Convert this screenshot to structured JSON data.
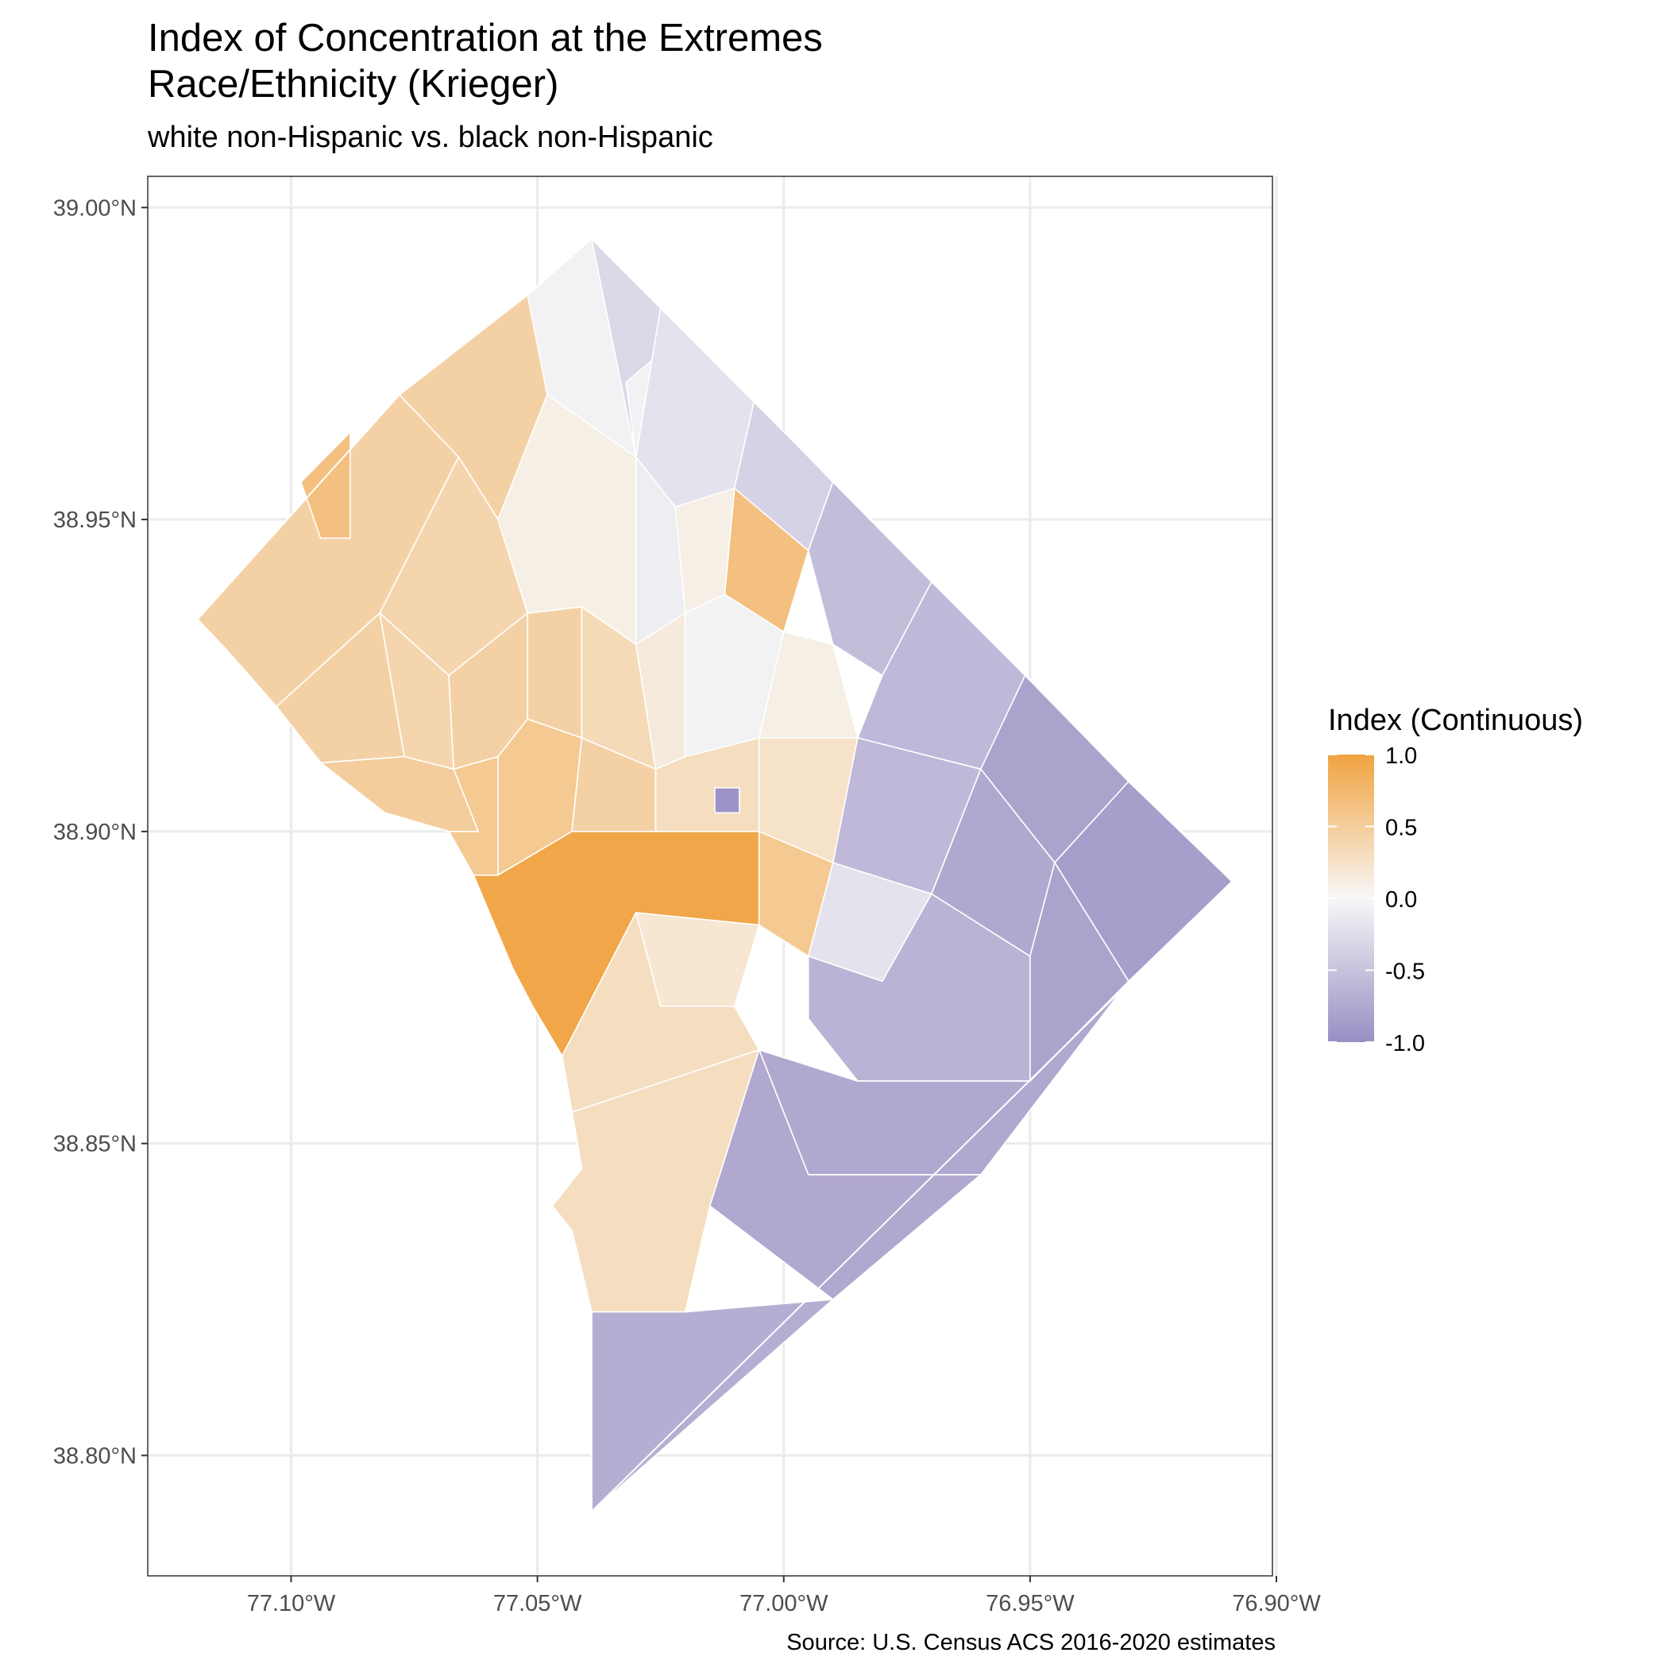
{
  "title_line1": "Index of Concentration at the Extremes",
  "title_line2": "Race/Ethnicity (Krieger)",
  "subtitle": "white non-Hispanic vs. black non-Hispanic",
  "caption": "Source: U.S. Census ACS 2016-2020 estimates",
  "legend": {
    "title": "Index (Continuous)",
    "ticks": [
      {
        "value": 1.0,
        "label": "1.0"
      },
      {
        "value": 0.5,
        "label": "0.5"
      },
      {
        "value": 0.0,
        "label": "0.0"
      },
      {
        "value": -0.5,
        "label": "-0.5"
      },
      {
        "value": -1.0,
        "label": "-1.0"
      }
    ],
    "colors": {
      "high": "#F1A340",
      "mid": "#F7F7F7",
      "low": "#998EC3"
    }
  },
  "axes": {
    "x_ticks": [
      {
        "value": -77.1,
        "label": "77.10°W"
      },
      {
        "value": -77.05,
        "label": "77.05°W"
      },
      {
        "value": -77.0,
        "label": "77.00°W"
      },
      {
        "value": -76.95,
        "label": "76.95°W"
      },
      {
        "value": -76.9,
        "label": "76.90°W"
      }
    ],
    "y_ticks": [
      {
        "value": 39.0,
        "label": "39.00°N"
      },
      {
        "value": 38.95,
        "label": "38.95°N"
      },
      {
        "value": 38.9,
        "label": "38.90°N"
      },
      {
        "value": 38.85,
        "label": "38.85°N"
      },
      {
        "value": 38.8,
        "label": "38.80°N"
      }
    ]
  },
  "map": {
    "outline": [
      [
        -77.039,
        38.995
      ],
      [
        -76.909,
        38.892
      ],
      [
        -77.039,
        38.791
      ],
      [
        -77.039,
        38.823
      ],
      [
        -77.043,
        38.836
      ],
      [
        -77.047,
        38.84
      ],
      [
        -77.041,
        38.846
      ],
      [
        -77.043,
        38.855
      ],
      [
        -77.045,
        38.864
      ],
      [
        -77.051,
        38.872
      ],
      [
        -77.055,
        38.878
      ],
      [
        -77.063,
        38.893
      ],
      [
        -77.068,
        38.9
      ],
      [
        -77.081,
        38.903
      ],
      [
        -77.094,
        38.911
      ],
      [
        -77.103,
        38.92
      ],
      [
        -77.113,
        38.929
      ],
      [
        -77.119,
        38.934
      ],
      [
        -77.078,
        38.97
      ],
      [
        -77.052,
        38.986
      ],
      [
        -77.039,
        38.995
      ]
    ],
    "tracts": [
      {
        "index": 0.45,
        "points": [
          [
            -77.119,
            38.934
          ],
          [
            -77.078,
            38.97
          ],
          [
            -77.066,
            38.96
          ],
          [
            -77.082,
            38.935
          ],
          [
            -77.103,
            38.92
          ],
          [
            -77.113,
            38.929
          ]
        ]
      },
      {
        "index": 0.65,
        "points": [
          [
            -77.098,
            38.956
          ],
          [
            -77.088,
            38.964
          ],
          [
            -77.088,
            38.947
          ],
          [
            -77.094,
            38.947
          ]
        ]
      },
      {
        "index": 0.45,
        "points": [
          [
            -77.103,
            38.92
          ],
          [
            -77.082,
            38.935
          ],
          [
            -77.077,
            38.912
          ],
          [
            -77.094,
            38.911
          ]
        ]
      },
      {
        "index": 0.45,
        "points": [
          [
            -77.078,
            38.97
          ],
          [
            -77.052,
            38.986
          ],
          [
            -77.048,
            38.97
          ],
          [
            -77.058,
            38.95
          ],
          [
            -77.066,
            38.96
          ]
        ]
      },
      {
        "index": 0.4,
        "points": [
          [
            -77.066,
            38.96
          ],
          [
            -77.058,
            38.95
          ],
          [
            -77.052,
            38.935
          ],
          [
            -77.068,
            38.925
          ],
          [
            -77.082,
            38.935
          ]
        ]
      },
      {
        "index": 0.4,
        "points": [
          [
            -77.082,
            38.935
          ],
          [
            -77.068,
            38.925
          ],
          [
            -77.067,
            38.91
          ],
          [
            -77.077,
            38.912
          ]
        ]
      },
      {
        "index": 0.45,
        "points": [
          [
            -77.068,
            38.925
          ],
          [
            -77.052,
            38.935
          ],
          [
            -77.052,
            38.918
          ],
          [
            -77.058,
            38.912
          ],
          [
            -77.067,
            38.91
          ]
        ]
      },
      {
        "index": 0.5,
        "points": [
          [
            -77.077,
            38.912
          ],
          [
            -77.067,
            38.91
          ],
          [
            -77.062,
            38.9
          ],
          [
            -77.068,
            38.9
          ],
          [
            -77.081,
            38.903
          ],
          [
            -77.094,
            38.911
          ]
        ]
      },
      {
        "index": 0.55,
        "points": [
          [
            -77.067,
            38.91
          ],
          [
            -77.058,
            38.912
          ],
          [
            -77.058,
            38.893
          ],
          [
            -77.063,
            38.893
          ],
          [
            -77.068,
            38.9
          ],
          [
            -77.062,
            38.9
          ]
        ]
      },
      {
        "index": 0.45,
        "points": [
          [
            -77.052,
            38.935
          ],
          [
            -77.041,
            38.936
          ],
          [
            -77.041,
            38.915
          ],
          [
            -77.052,
            38.918
          ]
        ]
      },
      {
        "index": 0.55,
        "points": [
          [
            -77.052,
            38.918
          ],
          [
            -77.041,
            38.915
          ],
          [
            -77.043,
            38.9
          ],
          [
            -77.058,
            38.893
          ],
          [
            -77.058,
            38.912
          ]
        ]
      },
      {
        "index": 0.45,
        "points": [
          [
            -77.043,
            38.9
          ],
          [
            -77.026,
            38.9
          ],
          [
            -77.026,
            38.91
          ],
          [
            -77.041,
            38.915
          ]
        ]
      },
      {
        "index": 0.35,
        "points": [
          [
            -77.041,
            38.915
          ],
          [
            -77.026,
            38.91
          ],
          [
            -77.03,
            38.93
          ],
          [
            -77.041,
            38.936
          ]
        ]
      },
      {
        "index": -0.05,
        "points": [
          [
            -77.052,
            38.986
          ],
          [
            -77.039,
            38.995
          ],
          [
            -77.025,
            38.984
          ],
          [
            -77.03,
            38.96
          ],
          [
            -77.048,
            38.97
          ]
        ]
      },
      {
        "index": -0.3,
        "points": [
          [
            -77.039,
            38.995
          ],
          [
            -77.025,
            38.984
          ],
          [
            -77.02,
            38.98
          ],
          [
            -77.032,
            38.972
          ],
          [
            -77.03,
            38.96
          ]
        ]
      },
      {
        "index": 0.1,
        "points": [
          [
            -77.058,
            38.95
          ],
          [
            -77.048,
            38.97
          ],
          [
            -77.03,
            38.96
          ],
          [
            -77.03,
            38.93
          ],
          [
            -77.041,
            38.936
          ],
          [
            -77.052,
            38.935
          ]
        ]
      },
      {
        "index": -0.2,
        "points": [
          [
            -77.025,
            38.984
          ],
          [
            -77.006,
            38.969
          ],
          [
            -77.01,
            38.955
          ],
          [
            -77.022,
            38.952
          ],
          [
            -77.03,
            38.96
          ]
        ]
      },
      {
        "index": -0.1,
        "points": [
          [
            -77.03,
            38.96
          ],
          [
            -77.022,
            38.952
          ],
          [
            -77.02,
            38.935
          ],
          [
            -77.03,
            38.93
          ]
        ]
      },
      {
        "index": 0.15,
        "points": [
          [
            -77.03,
            38.93
          ],
          [
            -77.02,
            38.935
          ],
          [
            -77.02,
            38.912
          ],
          [
            -77.026,
            38.91
          ]
        ]
      },
      {
        "index": -0.35,
        "points": [
          [
            -77.006,
            38.969
          ],
          [
            -76.99,
            38.956
          ],
          [
            -76.995,
            38.945
          ],
          [
            -77.01,
            38.955
          ]
        ]
      },
      {
        "index": 0.65,
        "points": [
          [
            -77.01,
            38.955
          ],
          [
            -76.995,
            38.945
          ],
          [
            -77.0,
            38.932
          ],
          [
            -77.012,
            38.938
          ]
        ]
      },
      {
        "index": 0.1,
        "points": [
          [
            -77.022,
            38.952
          ],
          [
            -77.01,
            38.955
          ],
          [
            -77.012,
            38.938
          ],
          [
            -77.02,
            38.935
          ]
        ]
      },
      {
        "index": -0.05,
        "points": [
          [
            -77.02,
            38.935
          ],
          [
            -77.012,
            38.938
          ],
          [
            -77.0,
            38.932
          ],
          [
            -77.005,
            38.915
          ],
          [
            -77.02,
            38.912
          ]
        ]
      },
      {
        "index": 0.1,
        "points": [
          [
            -77.0,
            38.932
          ],
          [
            -76.99,
            38.93
          ],
          [
            -76.985,
            38.915
          ],
          [
            -77.005,
            38.915
          ]
        ]
      },
      {
        "index": -0.55,
        "points": [
          [
            -76.99,
            38.956
          ],
          [
            -76.97,
            38.94
          ],
          [
            -76.98,
            38.925
          ],
          [
            -76.99,
            38.93
          ],
          [
            -76.995,
            38.945
          ]
        ]
      },
      {
        "index": -0.6,
        "points": [
          [
            -76.97,
            38.94
          ],
          [
            -76.951,
            38.925
          ],
          [
            -76.96,
            38.91
          ],
          [
            -76.985,
            38.915
          ],
          [
            -76.98,
            38.925
          ]
        ]
      },
      {
        "index": -0.8,
        "points": [
          [
            -76.951,
            38.925
          ],
          [
            -76.93,
            38.908
          ],
          [
            -76.945,
            38.895
          ],
          [
            -76.96,
            38.91
          ]
        ]
      },
      {
        "index": -0.85,
        "points": [
          [
            -76.93,
            38.908
          ],
          [
            -76.909,
            38.892
          ],
          [
            -76.93,
            38.876
          ],
          [
            -76.945,
            38.895
          ]
        ]
      },
      {
        "index": 0.3,
        "points": [
          [
            -77.026,
            38.91
          ],
          [
            -77.02,
            38.912
          ],
          [
            -77.005,
            38.915
          ],
          [
            -77.005,
            38.9
          ],
          [
            -77.026,
            38.9
          ]
        ]
      },
      {
        "index": 0.25,
        "points": [
          [
            -77.005,
            38.915
          ],
          [
            -76.985,
            38.915
          ],
          [
            -76.99,
            38.895
          ],
          [
            -77.005,
            38.9
          ]
        ]
      },
      {
        "index": -0.6,
        "points": [
          [
            -76.985,
            38.915
          ],
          [
            -76.96,
            38.91
          ],
          [
            -76.97,
            38.89
          ],
          [
            -76.99,
            38.895
          ]
        ]
      },
      {
        "index": -0.75,
        "points": [
          [
            -76.96,
            38.91
          ],
          [
            -76.945,
            38.895
          ],
          [
            -76.95,
            38.88
          ],
          [
            -76.97,
            38.89
          ]
        ]
      },
      {
        "index": -0.8,
        "points": [
          [
            -76.945,
            38.895
          ],
          [
            -76.93,
            38.876
          ],
          [
            -76.95,
            38.86
          ],
          [
            -76.95,
            38.88
          ]
        ]
      },
      {
        "index": 0.95,
        "points": [
          [
            -77.063,
            38.893
          ],
          [
            -77.058,
            38.893
          ],
          [
            -77.043,
            38.9
          ],
          [
            -77.026,
            38.9
          ],
          [
            -77.005,
            38.9
          ],
          [
            -77.005,
            38.885
          ],
          [
            -77.03,
            38.887
          ],
          [
            -77.045,
            38.864
          ],
          [
            -77.051,
            38.872
          ],
          [
            -77.055,
            38.878
          ]
        ]
      },
      {
        "index": 0.55,
        "points": [
          [
            -77.005,
            38.9
          ],
          [
            -76.99,
            38.895
          ],
          [
            -76.995,
            38.88
          ],
          [
            -77.005,
            38.885
          ]
        ]
      },
      {
        "index": -0.2,
        "points": [
          [
            -76.99,
            38.895
          ],
          [
            -76.97,
            38.89
          ],
          [
            -76.98,
            38.876
          ],
          [
            -76.995,
            38.88
          ]
        ]
      },
      {
        "index": 0.2,
        "points": [
          [
            -77.03,
            38.887
          ],
          [
            -77.005,
            38.885
          ],
          [
            -77.01,
            38.872
          ],
          [
            -77.025,
            38.872
          ]
        ]
      },
      {
        "index": -0.65,
        "points": [
          [
            -76.995,
            38.88
          ],
          [
            -76.98,
            38.876
          ],
          [
            -76.97,
            38.89
          ],
          [
            -76.95,
            38.88
          ],
          [
            -76.95,
            38.86
          ],
          [
            -76.985,
            38.86
          ],
          [
            -76.995,
            38.87
          ]
        ]
      },
      {
        "index": 0.3,
        "points": [
          [
            -77.045,
            38.864
          ],
          [
            -77.03,
            38.887
          ],
          [
            -77.025,
            38.872
          ],
          [
            -77.01,
            38.872
          ],
          [
            -77.005,
            38.865
          ],
          [
            -77.043,
            38.855
          ]
        ]
      },
      {
        "index": -0.75,
        "points": [
          [
            -77.005,
            38.865
          ],
          [
            -76.985,
            38.86
          ],
          [
            -76.95,
            38.86
          ],
          [
            -76.93,
            38.876
          ],
          [
            -76.96,
            38.845
          ],
          [
            -76.995,
            38.845
          ]
        ]
      },
      {
        "index": 0.3,
        "points": [
          [
            -77.043,
            38.855
          ],
          [
            -77.005,
            38.865
          ],
          [
            -77.015,
            38.84
          ],
          [
            -77.02,
            38.823
          ],
          [
            -77.039,
            38.823
          ],
          [
            -77.043,
            38.836
          ],
          [
            -77.047,
            38.84
          ],
          [
            -77.041,
            38.846
          ]
        ]
      },
      {
        "index": -0.75,
        "points": [
          [
            -77.015,
            38.84
          ],
          [
            -77.005,
            38.865
          ],
          [
            -76.995,
            38.845
          ],
          [
            -76.96,
            38.845
          ],
          [
            -76.99,
            38.825
          ]
        ]
      },
      {
        "index": -0.7,
        "points": [
          [
            -77.039,
            38.823
          ],
          [
            -77.02,
            38.823
          ],
          [
            -76.99,
            38.825
          ],
          [
            -77.039,
            38.791
          ]
        ]
      },
      {
        "index": -0.95,
        "points": [
          [
            -77.014,
            38.907
          ],
          [
            -77.009,
            38.907
          ],
          [
            -77.009,
            38.903
          ],
          [
            -77.014,
            38.903
          ]
        ]
      }
    ]
  }
}
